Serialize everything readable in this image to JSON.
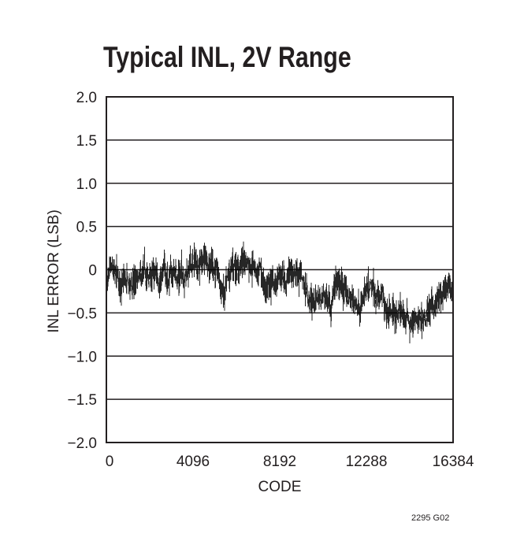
{
  "chart_data": {
    "type": "line",
    "title": "Typical INL, 2V Range",
    "xlabel": "CODE",
    "ylabel": "INL ERROR (LSB)",
    "xlim": [
      0,
      16384
    ],
    "ylim": [
      -2.0,
      2.0
    ],
    "xticks": [
      "0",
      "4096",
      "8192",
      "12288",
      "16384"
    ],
    "xtick_values": [
      0,
      4096,
      8192,
      12288,
      16384
    ],
    "yticks": [
      "2.0",
      "1.5",
      "1.0",
      "0.5",
      "0",
      "−0.5",
      "−1.0",
      "−1.5",
      "−2.0"
    ],
    "ytick_values": [
      2.0,
      1.5,
      1.0,
      0.5,
      0,
      -0.5,
      -1.0,
      -1.5,
      -2.0
    ],
    "grid": "horizontal",
    "series_color": "#000000",
    "approx_peak_to_peak_noise_lsb": 0.4,
    "series": [
      {
        "x": [
          0,
          1040,
          2300,
          3540,
          4170,
          4950,
          5290,
          5590,
          6030,
          6880,
          7520,
          8490,
          9000,
          9600,
          10350,
          10980,
          11600,
          12850,
          13850,
          14700,
          15450,
          16300,
          16384
        ],
        "y": [
          -0.09,
          -0.22,
          -0.1,
          -0.03,
          0.06,
          0.15,
          -0.1,
          -0.34,
          0.05,
          0.14,
          -0.22,
          -0.1,
          0.05,
          -0.34,
          -0.34,
          -0.18,
          -0.37,
          -0.31,
          -0.52,
          -0.64,
          -0.43,
          -0.25,
          -0.2
        ]
      }
    ]
  },
  "footer": "2295 G02"
}
